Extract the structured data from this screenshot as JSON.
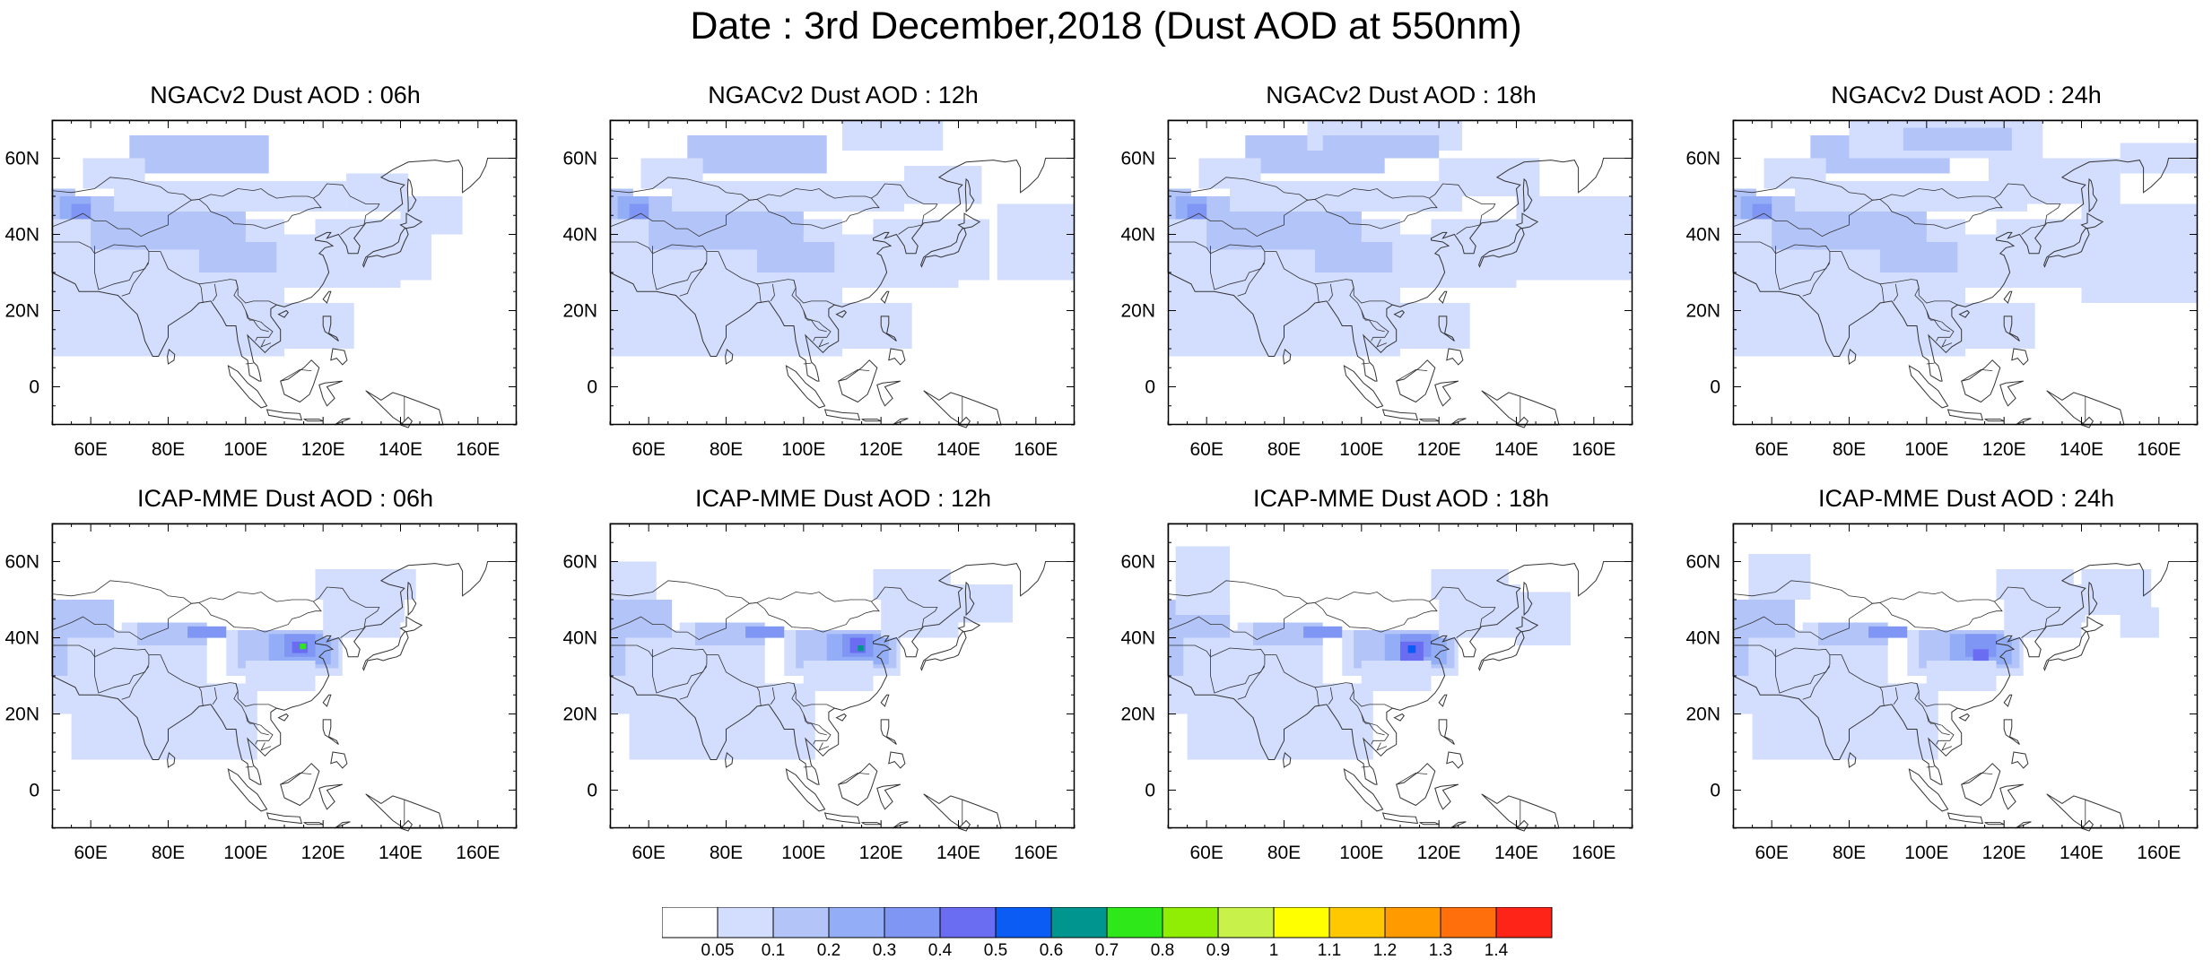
{
  "title": "Date : 3rd December,2018 (Dust AOD at 550nm)",
  "map_extent": {
    "lon_min": 50,
    "lon_max": 170,
    "lat_min": -10,
    "lat_max": 70
  },
  "x_ticks": [
    {
      "value": 60,
      "label": "60E"
    },
    {
      "value": 80,
      "label": "80E"
    },
    {
      "value": 100,
      "label": "100E"
    },
    {
      "value": 120,
      "label": "120E"
    },
    {
      "value": 140,
      "label": "140E"
    },
    {
      "value": 160,
      "label": "160E"
    }
  ],
  "y_ticks": [
    {
      "value": 60,
      "label": "60N"
    },
    {
      "value": 40,
      "label": "40N"
    },
    {
      "value": 20,
      "label": "20N"
    },
    {
      "value": 0,
      "label": "0"
    }
  ],
  "panels": [
    {
      "model": "NGAC",
      "title": "NGACv2 Dust AOD : 06h"
    },
    {
      "model": "NGAC",
      "title": "NGACv2 Dust AOD : 12h"
    },
    {
      "model": "NGAC",
      "title": "NGACv2 Dust AOD : 18h"
    },
    {
      "model": "NGAC",
      "title": "NGACv2 Dust AOD : 24h"
    },
    {
      "model": "ICAP",
      "title": "ICAP-MME Dust AOD : 06h"
    },
    {
      "model": "ICAP",
      "title": "ICAP-MME Dust AOD : 12h"
    },
    {
      "model": "ICAP",
      "title": "ICAP-MME Dust AOD : 18h"
    },
    {
      "model": "ICAP",
      "title": "ICAP-MME Dust AOD : 24h"
    }
  ],
  "colorbar": {
    "labels": [
      "0.05",
      "0.1",
      "0.2",
      "0.3",
      "0.4",
      "0.5",
      "0.6",
      "0.7",
      "0.8",
      "0.9",
      "1",
      "1.1",
      "1.2",
      "1.3",
      "1.4"
    ],
    "colors": [
      "#ffffff",
      "#d3deff",
      "#b3c4f8",
      "#93aef6",
      "#8096f5",
      "#6a6cf2",
      "#0b5cf5",
      "#00968f",
      "#2ee81a",
      "#8fee04",
      "#c8f24a",
      "#ffff00",
      "#ffc800",
      "#ff9a00",
      "#ff6f0c",
      "#ff2418"
    ]
  },
  "colors": {
    "coastline": "#333333",
    "frame": "#000000"
  }
}
